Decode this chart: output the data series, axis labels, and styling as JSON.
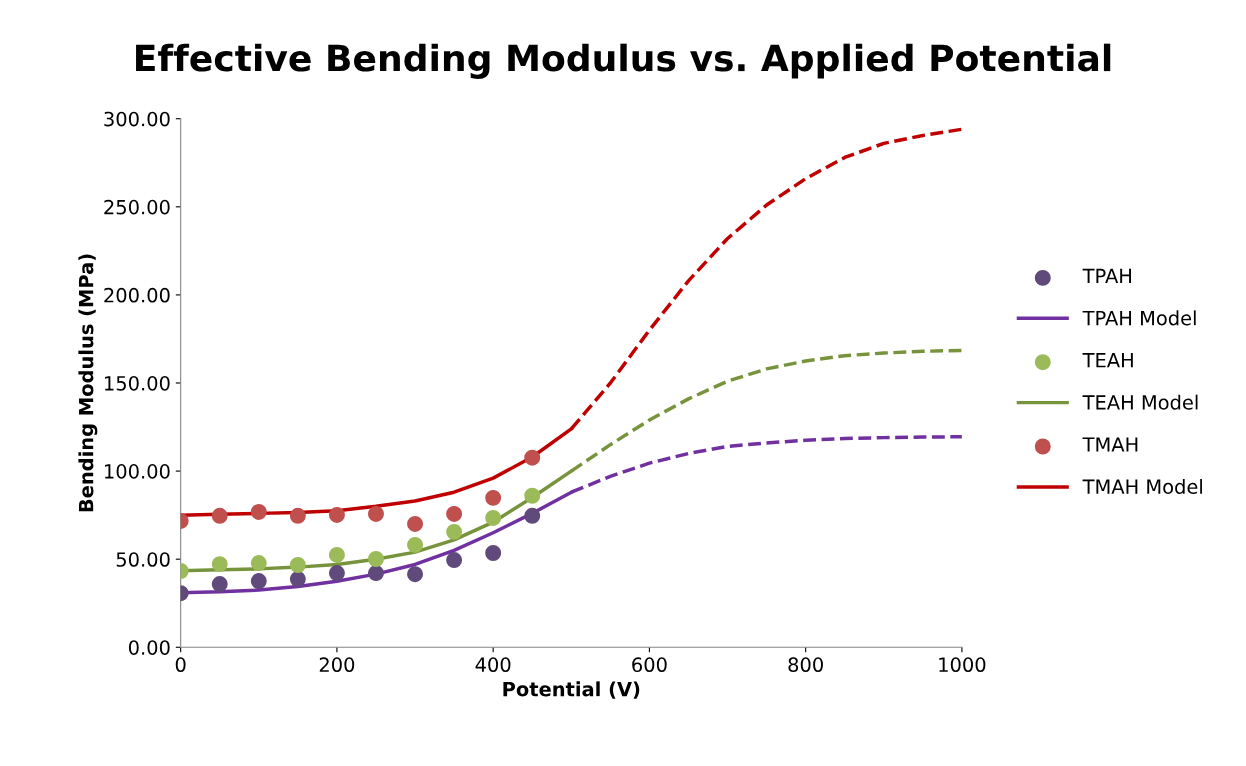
{
  "chart_data": {
    "type": "scatter",
    "title": "Effective Bending Modulus vs. Applied Potential",
    "xlabel": "Potential (V)",
    "ylabel": "Bending Modulus (MPa)",
    "xlim": [
      0,
      1000
    ],
    "xticks": [
      0,
      200,
      400,
      600,
      800,
      1000
    ],
    "ylim": [
      0,
      300
    ],
    "yticks": [
      {
        "value": 0,
        "label": "0.00"
      },
      {
        "value": 50,
        "label": "50.00"
      },
      {
        "value": 100,
        "label": "100.00"
      },
      {
        "value": 150,
        "label": "150.00"
      },
      {
        "value": 200,
        "label": "200.00"
      },
      {
        "value": 250,
        "label": "250.00"
      },
      {
        "value": 300,
        "label": "300.00"
      }
    ],
    "grid": false,
    "legend": "right",
    "series": [
      {
        "name": "TPAH",
        "marker": "circle",
        "color": "#604a7b",
        "x": [
          0,
          50,
          100,
          150,
          200,
          250,
          300,
          350,
          400,
          450
        ],
        "values": [
          30.7,
          35.9,
          37.6,
          38.7,
          42.1,
          42.1,
          41.5,
          49.5,
          53.5,
          74.6
        ]
      },
      {
        "name": "TPAH Model",
        "type": "line",
        "line_style": "solid",
        "color": "#7030a0",
        "x": [
          0,
          50,
          100,
          150,
          200,
          250,
          300,
          350,
          400,
          450,
          500
        ],
        "values": [
          31,
          31.5,
          32.5,
          34.5,
          37.5,
          41.5,
          47,
          55,
          65,
          76,
          88
        ]
      },
      {
        "name": "TEAH",
        "marker": "circle",
        "color": "#9bbb59",
        "x": [
          0,
          50,
          100,
          150,
          200,
          250,
          300,
          350,
          400,
          450
        ],
        "values": [
          43.3,
          47.2,
          47.8,
          46.7,
          52.4,
          50.1,
          58.1,
          65.5,
          73.4,
          86
        ]
      },
      {
        "name": "TEAH Model",
        "type": "line",
        "line_style": "solid",
        "color": "#77933c",
        "x": [
          0,
          50,
          100,
          150,
          200,
          250,
          300,
          350,
          400,
          450,
          500
        ],
        "values": [
          43.5,
          44,
          44.5,
          45.5,
          47,
          50,
          54,
          61,
          71,
          85,
          100
        ]
      },
      {
        "name": "TMAH",
        "marker": "circle",
        "color": "#c0504d",
        "x": [
          0,
          50,
          100,
          150,
          200,
          250,
          300,
          350,
          400,
          450
        ],
        "values": [
          71.7,
          74.6,
          76.8,
          74.6,
          75.1,
          75.7,
          70,
          75.7,
          84.8,
          107.6
        ]
      },
      {
        "name": "TMAH Model",
        "type": "line",
        "line_style": "solid",
        "color": "#c00000",
        "x": [
          0,
          50,
          100,
          150,
          200,
          250,
          300,
          350,
          400,
          450,
          500
        ],
        "values": [
          75,
          75.5,
          76,
          76.5,
          77.5,
          80,
          83,
          88,
          96,
          108,
          124
        ]
      },
      {
        "type": "line",
        "line_style": "dashed",
        "color": "#7030a0",
        "x": [
          500,
          550,
          600,
          650,
          700,
          750,
          800,
          850,
          900,
          950,
          1000
        ],
        "values": [
          88,
          97,
          104.5,
          110,
          114,
          116,
          117.5,
          118.5,
          119,
          119.3,
          119.5
        ]
      },
      {
        "type": "line",
        "line_style": "dashed",
        "color": "#77933c",
        "x": [
          500,
          550,
          600,
          650,
          700,
          750,
          800,
          850,
          900,
          950,
          1000
        ],
        "values": [
          100,
          115,
          129,
          141,
          151,
          158,
          162.5,
          165.5,
          167,
          168,
          168.5
        ]
      },
      {
        "type": "line",
        "line_style": "dashed",
        "color": "#c00000",
        "x": [
          500,
          550,
          600,
          650,
          700,
          750,
          800,
          850,
          900,
          950,
          1000
        ],
        "values": [
          124,
          150,
          180,
          208,
          232,
          251,
          266,
          278,
          286,
          290.5,
          294
        ]
      }
    ]
  }
}
